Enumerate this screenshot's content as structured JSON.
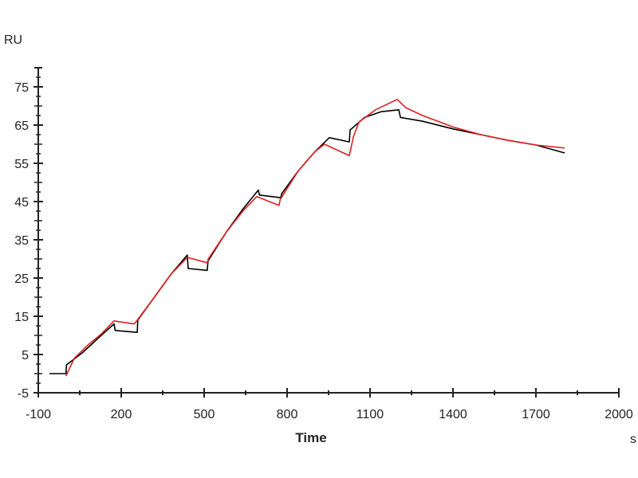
{
  "chart_data": {
    "type": "line",
    "title": "",
    "xlabel": "Time",
    "xunit": "s",
    "ylabel": "RU",
    "xlim": [
      -100,
      2000
    ],
    "ylim": [
      -5,
      80
    ],
    "xticks": [
      -100,
      200,
      500,
      800,
      1100,
      1400,
      1700,
      2000
    ],
    "yticks": [
      -5,
      5,
      15,
      25,
      35,
      45,
      55,
      65,
      75
    ],
    "grid": false,
    "legend": "none",
    "series": [
      {
        "color": "#000000",
        "points": [
          [
            -60,
            0
          ],
          [
            0,
            0
          ],
          [
            2,
            2.3
          ],
          [
            60,
            5.5
          ],
          [
            120,
            9.5
          ],
          [
            174,
            13
          ],
          [
            178,
            11.3
          ],
          [
            258,
            10.8
          ],
          [
            260,
            14
          ],
          [
            320,
            20
          ],
          [
            380,
            26
          ],
          [
            439,
            31
          ],
          [
            442,
            27.5
          ],
          [
            511,
            27
          ],
          [
            514,
            29.5
          ],
          [
            580,
            37
          ],
          [
            640,
            43
          ],
          [
            696,
            48
          ],
          [
            700,
            46.7
          ],
          [
            777,
            46
          ],
          [
            780,
            47
          ],
          [
            840,
            53
          ],
          [
            900,
            58
          ],
          [
            953,
            61.7
          ],
          [
            1025,
            60.6
          ],
          [
            1028,
            63.7
          ],
          [
            1080,
            67
          ],
          [
            1140,
            68.5
          ],
          [
            1204,
            69
          ],
          [
            1210,
            67
          ],
          [
            1290,
            66
          ],
          [
            1400,
            64
          ],
          [
            1500,
            62.5
          ],
          [
            1600,
            61
          ],
          [
            1700,
            59.8
          ],
          [
            1804,
            57.7
          ]
        ]
      },
      {
        "color": "#e02020",
        "points": [
          [
            0,
            -0.6
          ],
          [
            30,
            4
          ],
          [
            80,
            7.5
          ],
          [
            130,
            10.5
          ],
          [
            174,
            13.8
          ],
          [
            246,
            13
          ],
          [
            250,
            13.2
          ],
          [
            320,
            20
          ],
          [
            380,
            26
          ],
          [
            439,
            30.4
          ],
          [
            511,
            29
          ],
          [
            515,
            30
          ],
          [
            580,
            37
          ],
          [
            640,
            42.5
          ],
          [
            690,
            46.3
          ],
          [
            771,
            44
          ],
          [
            775,
            45.5
          ],
          [
            840,
            53
          ],
          [
            900,
            58
          ],
          [
            935,
            60
          ],
          [
            1025,
            57
          ],
          [
            1040,
            62
          ],
          [
            1060,
            65.8
          ],
          [
            1120,
            69
          ],
          [
            1198,
            71.7
          ],
          [
            1230,
            69.5
          ],
          [
            1290,
            67.5
          ],
          [
            1400,
            64.5
          ],
          [
            1500,
            62.5
          ],
          [
            1600,
            61
          ],
          [
            1700,
            59.8
          ],
          [
            1804,
            59
          ]
        ]
      }
    ]
  }
}
